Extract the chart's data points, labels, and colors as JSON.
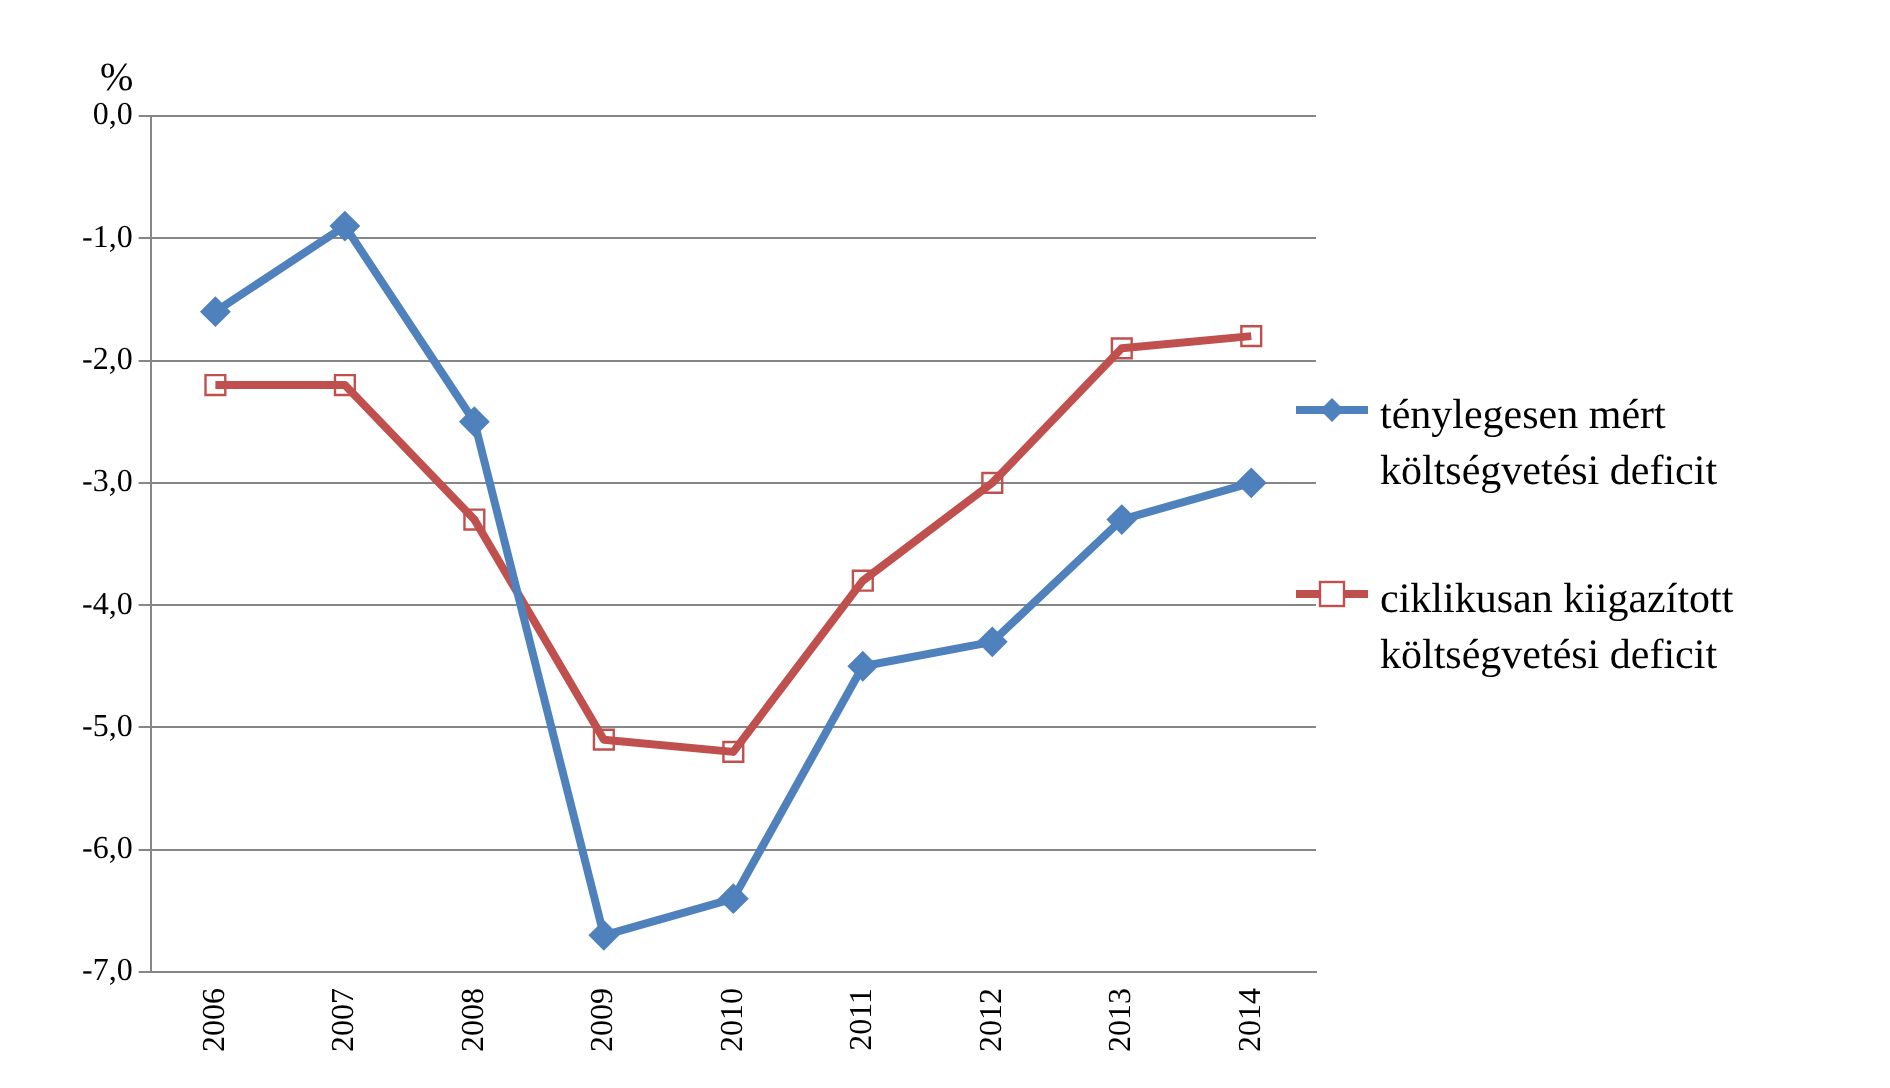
{
  "chart_data": {
    "type": "line",
    "ylabel": "%",
    "categories": [
      "2006",
      "2007",
      "2008",
      "2009",
      "2010",
      "2011",
      "2012",
      "2013",
      "2014"
    ],
    "series": [
      {
        "name": "ténylegesen mért költségvetési deficit",
        "color": "#4f81bd",
        "marker": "diamond",
        "values": [
          -1.6,
          -0.9,
          -2.5,
          -6.7,
          -6.4,
          -4.5,
          -4.3,
          -3.3,
          -3.0
        ]
      },
      {
        "name": "ciklikusan kiigazított költségvetési deficit",
        "color": "#c0504d",
        "marker": "square",
        "values": [
          -2.2,
          -2.2,
          -3.3,
          -5.1,
          -5.2,
          -3.8,
          -3.0,
          -1.9,
          -1.8
        ]
      }
    ],
    "ylim": [
      -7,
      0
    ],
    "yticks": [
      {
        "value": 0,
        "label": "0,0"
      },
      {
        "value": -1,
        "label": "-1,0"
      },
      {
        "value": -2,
        "label": "-2,0"
      },
      {
        "value": -3,
        "label": "-3,0"
      },
      {
        "value": -4,
        "label": "-4,0"
      },
      {
        "value": -5,
        "label": "-5,0"
      },
      {
        "value": -6,
        "label": "-6,0"
      },
      {
        "value": -7,
        "label": "-7,0"
      }
    ],
    "grid": "y",
    "legend": "right"
  }
}
